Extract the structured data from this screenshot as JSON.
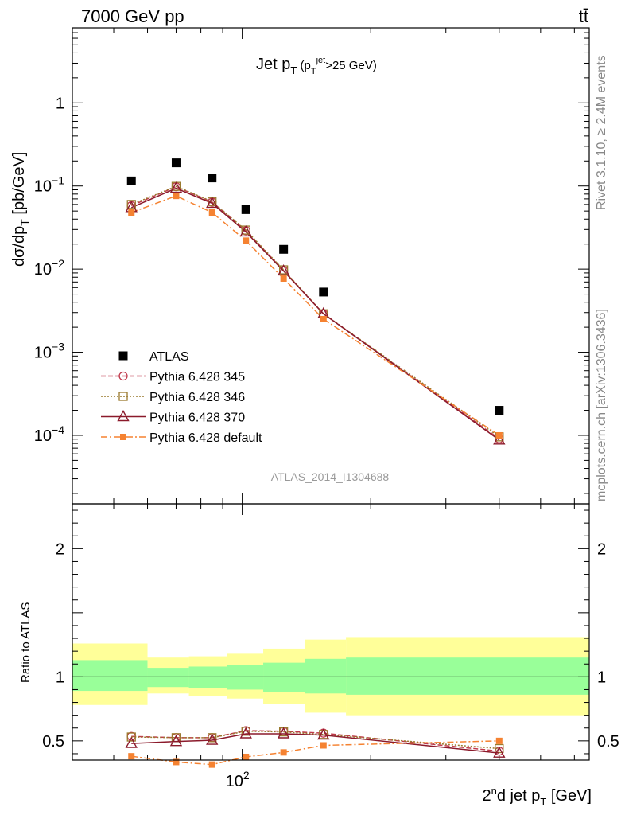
{
  "header": {
    "energy_label": "7000 GeV pp",
    "process_label": "tt̄"
  },
  "side_labels": {
    "rivet": "Rivet 3.1.10, ≥ 2.4M events",
    "mcplots": "mcplots.cern.ch [arXiv:1306.3436]"
  },
  "colors": {
    "atlas": "#000000",
    "p345": "#c0394b",
    "p346": "#9a7a2e",
    "p370": "#8b1a2b",
    "pdefault": "#f58231",
    "band_inner": "#99ff99",
    "band_outer": "#ffff99"
  },
  "chart_data": [
    {
      "type": "scatter",
      "title": "Jet p_T (p_T^jet>25 GeV)",
      "ylabel": "dσ/dp_T [pb/GeV]",
      "analysis_label": "ATLAS_2014_I1304688",
      "yscale": "log",
      "xscale": "log",
      "xlim": [
        40,
        650
      ],
      "ylim": [
        1.5e-05,
        8
      ],
      "y_tick_labels": [
        "10^-4",
        "10^-3",
        "10^-2",
        "10^-1",
        "1"
      ],
      "x": [
        55,
        70,
        85,
        102,
        125,
        155,
        400
      ],
      "series": [
        {
          "name": "ATLAS",
          "marker": "filled-square",
          "values": [
            0.115,
            0.19,
            0.125,
            0.052,
            0.0173,
            0.0053,
            0.0002
          ]
        },
        {
          "name": "Pythia 6.428 345",
          "marker": "open-circle",
          "line": "dashed",
          "values": [
            0.058,
            0.098,
            0.064,
            0.029,
            0.0096,
            0.0029,
            9.1e-05
          ]
        },
        {
          "name": "Pythia 6.428 346",
          "marker": "open-square",
          "line": "dotted",
          "values": [
            0.06,
            0.099,
            0.065,
            0.0295,
            0.0098,
            0.0029,
            9.6e-05
          ]
        },
        {
          "name": "Pythia 6.428 370",
          "marker": "open-triangle",
          "line": "solid",
          "values": [
            0.055,
            0.094,
            0.062,
            0.028,
            0.0095,
            0.0029,
            8.8e-05
          ]
        },
        {
          "name": "Pythia 6.428 default",
          "marker": "filled-small-square",
          "line": "dash-dot",
          "values": [
            0.048,
            0.076,
            0.048,
            0.022,
            0.0077,
            0.0025,
            0.0001
          ]
        }
      ]
    },
    {
      "type": "scatter",
      "ylabel": "Ratio to ATLAS",
      "xlabel": "2nd jet p_T [GeV]",
      "xscale": "log",
      "xlim": [
        40,
        650
      ],
      "ylim": [
        0.35,
        2.35
      ],
      "y_tick_labels": [
        "0.5",
        "1",
        "2"
      ],
      "x_tick_labels": [
        "10^2"
      ],
      "bands": {
        "edges": [
          40,
          60,
          75,
          92,
          112,
          140,
          175,
          650
        ],
        "inner_low": [
          0.89,
          0.92,
          0.91,
          0.9,
          0.88,
          0.87,
          0.86
        ],
        "inner_high": [
          1.13,
          1.07,
          1.08,
          1.09,
          1.11,
          1.14,
          1.15
        ],
        "outer_low": [
          0.78,
          0.87,
          0.85,
          0.83,
          0.79,
          0.72,
          0.7
        ],
        "outer_high": [
          1.26,
          1.15,
          1.16,
          1.18,
          1.22,
          1.29,
          1.31
        ]
      },
      "x": [
        55,
        70,
        85,
        102,
        125,
        155,
        400
      ],
      "series": [
        {
          "name": "Pythia 6.428 345",
          "values": [
            0.535,
            0.525,
            0.525,
            0.58,
            0.575,
            0.56,
            0.42
          ]
        },
        {
          "name": "Pythia 6.428 346",
          "values": [
            0.53,
            0.525,
            0.525,
            0.575,
            0.57,
            0.55,
            0.44
          ]
        },
        {
          "name": "Pythia 6.428 370",
          "values": [
            0.48,
            0.495,
            0.505,
            0.555,
            0.555,
            0.545,
            0.405
          ]
        },
        {
          "name": "Pythia 6.428 default",
          "values": [
            0.38,
            0.335,
            0.315,
            0.375,
            0.41,
            0.465,
            0.5
          ]
        }
      ]
    }
  ]
}
